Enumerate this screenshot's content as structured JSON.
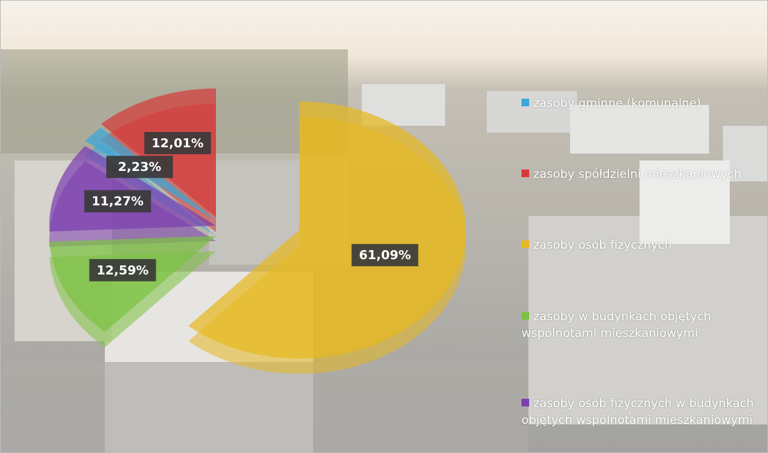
{
  "chart_data": {
    "type": "pie",
    "categories": [
      "zasoby gminne (komunalne)",
      "zasoby spółdzielni mieszkaniowych",
      "zasoby osób fizycznych",
      "zasoby w budynkach objętych wspólnotami mieszkaniowymi",
      "zasoby osób fizycznych w budynkach objętych wspólnotami mieszkaniowymi"
    ],
    "values": [
      2.23,
      12.01,
      61.09,
      12.59,
      11.27
    ],
    "value_labels": [
      "2,23%",
      "12,01%",
      "61,09%",
      "12,59%",
      "11,27%"
    ],
    "colors": [
      "#3aa8d8",
      "#d63a3a",
      "#e6b820",
      "#7cc242",
      "#7b3fb0"
    ],
    "legend": "right"
  }
}
